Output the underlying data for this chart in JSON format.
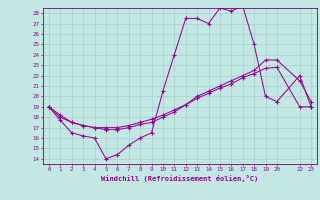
{
  "xlabel": "Windchill (Refroidissement éolien,°C)",
  "bg_color": "#c2e8e4",
  "grid_color": "#a0ccc8",
  "line_color": "#990099",
  "spine_color": "#770077",
  "xlim": [
    -0.5,
    23.5
  ],
  "ylim": [
    13.5,
    28.5
  ],
  "xticks": [
    0,
    1,
    2,
    3,
    4,
    5,
    6,
    7,
    8,
    9,
    10,
    11,
    12,
    13,
    14,
    15,
    16,
    17,
    18,
    19,
    20,
    22,
    23
  ],
  "yticks": [
    14,
    15,
    16,
    17,
    18,
    19,
    20,
    21,
    22,
    23,
    24,
    25,
    26,
    27,
    28
  ],
  "line1_x": [
    0,
    1,
    2,
    3,
    4,
    5,
    6,
    7,
    8,
    9,
    10,
    11,
    12,
    13,
    14,
    15,
    16,
    17,
    18,
    19,
    20,
    22,
    23
  ],
  "line1_y": [
    19.0,
    17.7,
    16.5,
    16.2,
    16.0,
    14.0,
    14.4,
    15.3,
    16.0,
    16.5,
    20.5,
    24.0,
    27.5,
    27.5,
    27.0,
    28.5,
    28.2,
    28.7,
    25.0,
    20.0,
    19.5,
    22.0,
    19.0
  ],
  "line2_x": [
    0,
    1,
    2,
    3,
    4,
    5,
    6,
    7,
    8,
    9,
    10,
    11,
    12,
    13,
    14,
    15,
    16,
    17,
    18,
    19,
    20,
    22,
    23
  ],
  "line2_y": [
    19.0,
    18.0,
    17.5,
    17.2,
    17.0,
    16.8,
    16.8,
    17.0,
    17.3,
    17.5,
    18.0,
    18.5,
    19.2,
    20.0,
    20.5,
    21.0,
    21.5,
    22.0,
    22.5,
    23.5,
    23.5,
    21.5,
    19.5
  ],
  "line3_x": [
    0,
    1,
    2,
    3,
    4,
    5,
    6,
    7,
    8,
    9,
    10,
    11,
    12,
    13,
    14,
    15,
    16,
    17,
    18,
    19,
    20,
    22,
    23
  ],
  "line3_y": [
    19.0,
    18.2,
    17.5,
    17.2,
    17.0,
    17.0,
    17.0,
    17.2,
    17.5,
    17.8,
    18.2,
    18.7,
    19.2,
    19.8,
    20.3,
    20.8,
    21.2,
    21.8,
    22.2,
    22.7,
    22.8,
    19.0,
    19.0
  ]
}
